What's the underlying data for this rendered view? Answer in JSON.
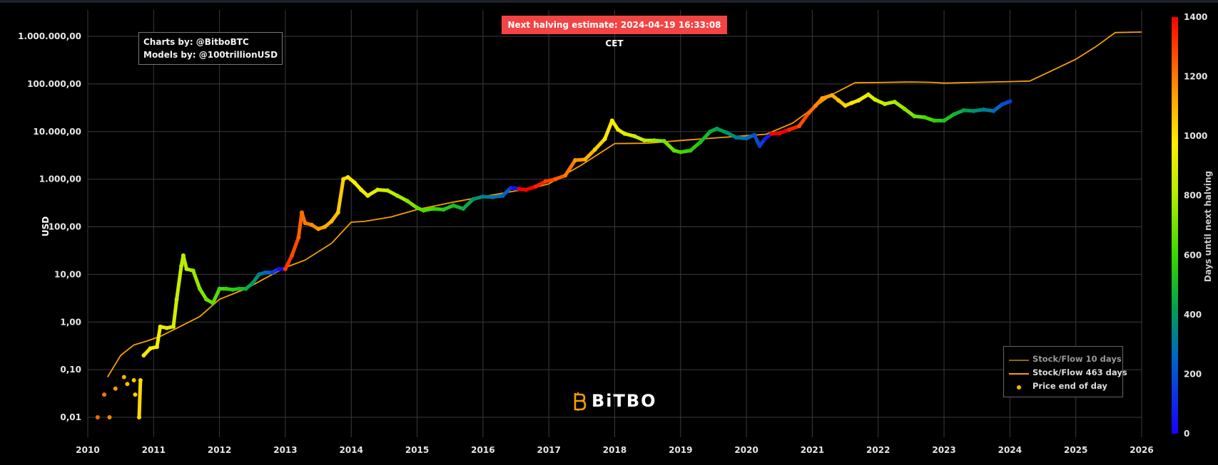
{
  "banner": {
    "text": "Next halving estimate: 2024-04-19 16:33:08 CET"
  },
  "credits": {
    "line1": "Charts by: @BitboBTC",
    "line2": "Models by: @100trillionUSD"
  },
  "logo": {
    "text": "BiTBO",
    "color": "#f5a000",
    "icon": "bitbo-b-icon"
  },
  "legend": {
    "items": [
      {
        "label": "Stock/Flow 10 days",
        "type": "line",
        "color": "#8a6a00"
      },
      {
        "label": "Stock/Flow 463 days",
        "type": "line",
        "color": "#f5a000"
      },
      {
        "label": "Price end of day",
        "type": "dot",
        "color": "#f5b800"
      }
    ],
    "placement": "bottom-right"
  },
  "chart_data": {
    "type": "scatter",
    "yscale": "log",
    "ylabel": "USD",
    "ylim": [
      0.01,
      1000000
    ],
    "y_ticks": [
      "1.000.000,00",
      "100.000,00",
      "10.000,00",
      "1.000,00",
      "100,00",
      "10,00",
      "1,00",
      "0,10",
      "0,01"
    ],
    "y_tick_values": [
      1000000,
      100000,
      10000,
      1000,
      100,
      10,
      1,
      0.1,
      0.01
    ],
    "x_ticks": [
      "2010",
      "2011",
      "2012",
      "2013",
      "2014",
      "2015",
      "2016",
      "2017",
      "2018",
      "2019",
      "2020",
      "2021",
      "2022",
      "2023",
      "2024",
      "2025",
      "2026"
    ],
    "xlim": [
      2010,
      2026
    ],
    "grid": true,
    "colorbar": {
      "label": "Days until next halving",
      "range": [
        0,
        1400
      ],
      "ticks": [
        "1400",
        "1200",
        "1000",
        "800",
        "600",
        "400",
        "200",
        "0"
      ],
      "tick_values": [
        1400,
        1200,
        1000,
        800,
        600,
        400,
        200,
        0
      ]
    },
    "series": [
      {
        "name": "Stock/Flow 463 days",
        "kind": "line",
        "color": "#f5a000",
        "points": [
          [
            2010.3,
            0.07
          ],
          [
            2010.5,
            0.2
          ],
          [
            2010.7,
            0.33
          ],
          [
            2010.9,
            0.4
          ],
          [
            2011.1,
            0.5
          ],
          [
            2011.4,
            0.8
          ],
          [
            2011.7,
            1.3
          ],
          [
            2012.0,
            3.0
          ],
          [
            2012.4,
            5.0
          ],
          [
            2012.8,
            10
          ],
          [
            2013.0,
            14
          ],
          [
            2013.3,
            20
          ],
          [
            2013.7,
            45
          ],
          [
            2014.0,
            125
          ],
          [
            2014.2,
            130
          ],
          [
            2014.6,
            160
          ],
          [
            2015.0,
            230
          ],
          [
            2015.5,
            320
          ],
          [
            2016.0,
            430
          ],
          [
            2016.5,
            570
          ],
          [
            2016.7,
            620
          ],
          [
            2017.0,
            800
          ],
          [
            2017.5,
            2000
          ],
          [
            2018.0,
            5600
          ],
          [
            2018.5,
            5700
          ],
          [
            2019.0,
            6500
          ],
          [
            2019.5,
            7300
          ],
          [
            2020.0,
            8200
          ],
          [
            2020.3,
            8800
          ],
          [
            2020.7,
            15000
          ],
          [
            2021.0,
            30000
          ],
          [
            2021.3,
            60000
          ],
          [
            2021.65,
            106000
          ],
          [
            2022.0,
            107000
          ],
          [
            2022.5,
            110000
          ],
          [
            2022.8,
            108000
          ],
          [
            2023.0,
            104000
          ],
          [
            2023.5,
            108000
          ],
          [
            2024.0,
            112000
          ],
          [
            2024.3,
            115000
          ],
          [
            2024.6,
            180000
          ],
          [
            2025.0,
            330000
          ],
          [
            2025.3,
            600000
          ],
          [
            2025.6,
            1200000
          ],
          [
            2026.0,
            1230000
          ]
        ]
      },
      {
        "name": "Price end of day",
        "kind": "scatter",
        "points": [
          [
            2010.15,
            0.01,
            1230
          ],
          [
            2010.25,
            0.03,
            1210
          ],
          [
            2010.33,
            0.01,
            1180
          ],
          [
            2010.42,
            0.04,
            1150
          ],
          [
            2010.55,
            0.07,
            1100
          ],
          [
            2010.6,
            0.05,
            1080
          ],
          [
            2010.7,
            0.06,
            1060
          ],
          [
            2010.8,
            0.06,
            1020
          ],
          [
            2010.78,
            0.01,
            1020
          ],
          [
            2010.72,
            0.03,
            1040
          ],
          [
            2010.85,
            0.2,
            1000
          ],
          [
            2010.95,
            0.28,
            970
          ],
          [
            2011.05,
            0.3,
            950
          ],
          [
            2011.1,
            0.8,
            930
          ],
          [
            2011.2,
            0.75,
            900
          ],
          [
            2011.3,
            0.8,
            870
          ],
          [
            2011.35,
            3,
            850
          ],
          [
            2011.42,
            15,
            820
          ],
          [
            2011.45,
            25,
            810
          ],
          [
            2011.5,
            13,
            800
          ],
          [
            2011.6,
            12,
            760
          ],
          [
            2011.7,
            5,
            720
          ],
          [
            2011.8,
            3,
            680
          ],
          [
            2011.9,
            2.5,
            650
          ],
          [
            2012.0,
            5,
            620
          ],
          [
            2012.1,
            5,
            580
          ],
          [
            2012.2,
            4.8,
            550
          ],
          [
            2012.3,
            5,
            500
          ],
          [
            2012.4,
            5,
            450
          ],
          [
            2012.5,
            6.5,
            380
          ],
          [
            2012.6,
            10,
            320
          ],
          [
            2012.7,
            11,
            250
          ],
          [
            2012.8,
            11,
            150
          ],
          [
            2012.9,
            13,
            30
          ],
          [
            2013.0,
            13,
            1310
          ],
          [
            2013.1,
            25,
            1280
          ],
          [
            2013.2,
            60,
            1240
          ],
          [
            2013.25,
            200,
            1220
          ],
          [
            2013.3,
            120,
            1200
          ],
          [
            2013.4,
            110,
            1170
          ],
          [
            2013.5,
            90,
            1140
          ],
          [
            2013.6,
            100,
            1110
          ],
          [
            2013.7,
            130,
            1080
          ],
          [
            2013.8,
            200,
            1050
          ],
          [
            2013.88,
            1000,
            1020
          ],
          [
            2013.95,
            1100,
            1000
          ],
          [
            2014.05,
            850,
            980
          ],
          [
            2014.15,
            600,
            950
          ],
          [
            2014.25,
            450,
            920
          ],
          [
            2014.4,
            600,
            880
          ],
          [
            2014.55,
            580,
            830
          ],
          [
            2014.7,
            450,
            780
          ],
          [
            2014.85,
            350,
            720
          ],
          [
            2015.0,
            250,
            660
          ],
          [
            2015.1,
            220,
            630
          ],
          [
            2015.25,
            240,
            590
          ],
          [
            2015.4,
            230,
            540
          ],
          [
            2015.55,
            280,
            500
          ],
          [
            2015.7,
            240,
            450
          ],
          [
            2015.85,
            380,
            380
          ],
          [
            2016.0,
            430,
            330
          ],
          [
            2016.15,
            420,
            290
          ],
          [
            2016.3,
            450,
            250
          ],
          [
            2016.42,
            650,
            120
          ],
          [
            2016.47,
            650,
            40
          ],
          [
            2016.55,
            620,
            1440
          ],
          [
            2016.65,
            600,
            1400
          ],
          [
            2016.8,
            700,
            1350
          ],
          [
            2016.95,
            900,
            1300
          ],
          [
            2017.1,
            1000,
            1250
          ],
          [
            2017.25,
            1200,
            1200
          ],
          [
            2017.4,
            2500,
            1150
          ],
          [
            2017.55,
            2600,
            1100
          ],
          [
            2017.7,
            4200,
            1040
          ],
          [
            2017.85,
            7000,
            990
          ],
          [
            2017.96,
            17000,
            960
          ],
          [
            2018.05,
            11000,
            930
          ],
          [
            2018.15,
            9000,
            900
          ],
          [
            2018.3,
            8000,
            850
          ],
          [
            2018.45,
            6500,
            800
          ],
          [
            2018.6,
            6500,
            750
          ],
          [
            2018.75,
            6300,
            700
          ],
          [
            2018.9,
            4000,
            650
          ],
          [
            2019.0,
            3700,
            610
          ],
          [
            2019.15,
            4000,
            560
          ],
          [
            2019.3,
            6000,
            510
          ],
          [
            2019.45,
            10000,
            460
          ],
          [
            2019.55,
            11500,
            420
          ],
          [
            2019.7,
            9500,
            370
          ],
          [
            2019.85,
            7500,
            310
          ],
          [
            2020.0,
            7200,
            260
          ],
          [
            2020.12,
            8500,
            200
          ],
          [
            2020.2,
            5000,
            150
          ],
          [
            2020.28,
            7000,
            60
          ],
          [
            2020.38,
            9000,
            1440
          ],
          [
            2020.5,
            9200,
            1400
          ],
          [
            2020.65,
            11000,
            1340
          ],
          [
            2020.8,
            13000,
            1280
          ],
          [
            2020.95,
            25000,
            1220
          ],
          [
            2021.05,
            35000,
            1180
          ],
          [
            2021.15,
            50000,
            1140
          ],
          [
            2021.3,
            58000,
            1100
          ],
          [
            2021.4,
            45000,
            1060
          ],
          [
            2021.5,
            35000,
            1020
          ],
          [
            2021.6,
            40000,
            990
          ],
          [
            2021.7,
            45000,
            950
          ],
          [
            2021.85,
            60000,
            900
          ],
          [
            2021.95,
            47000,
            860
          ],
          [
            2022.1,
            38000,
            820
          ],
          [
            2022.25,
            42000,
            780
          ],
          [
            2022.4,
            30000,
            730
          ],
          [
            2022.55,
            21000,
            680
          ],
          [
            2022.7,
            20000,
            620
          ],
          [
            2022.85,
            17000,
            560
          ],
          [
            2023.0,
            17000,
            520
          ],
          [
            2023.15,
            23000,
            470
          ],
          [
            2023.3,
            28000,
            420
          ],
          [
            2023.45,
            27000,
            370
          ],
          [
            2023.6,
            29000,
            320
          ],
          [
            2023.75,
            27000,
            260
          ],
          [
            2023.88,
            37000,
            200
          ],
          [
            2024.0,
            43000,
            160
          ]
        ]
      }
    ]
  }
}
